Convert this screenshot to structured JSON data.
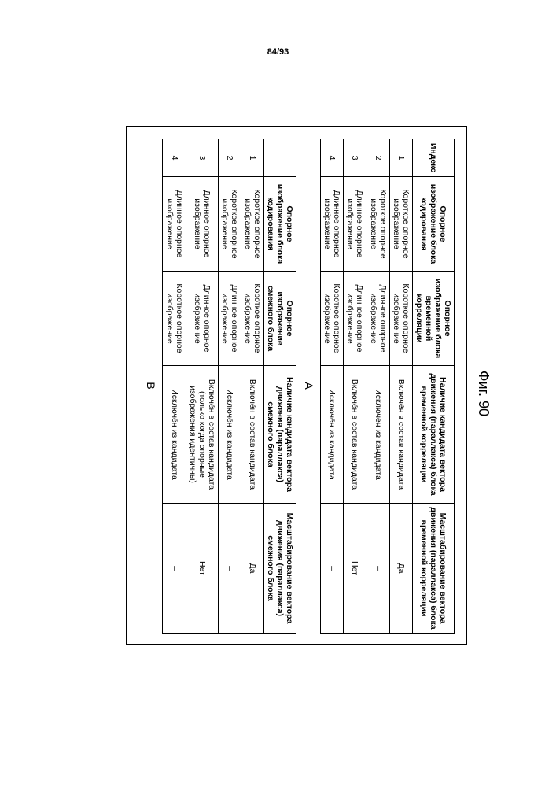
{
  "pageNumber": "84/93",
  "figTitle": "Фиг. 90",
  "labelA": "A",
  "labelB": "B",
  "tableA": {
    "headers": {
      "idx": "Индекс",
      "ref": "Опорное изображение блока кодирования",
      "corr": "Опорное изображение блока временной корреляции",
      "cand": "Наличие кандидата вектора движения (параллакса) блока временной корреляции",
      "scale": "Масштабирование вектора движения (параллакса) блока временной корреляции"
    },
    "rows": [
      {
        "idx": "1",
        "ref": "Короткое опорное изображение",
        "corr": "Короткое опорное изображение",
        "cand": "Включён в состав кандидата",
        "scale": "Да"
      },
      {
        "idx": "2",
        "ref": "Короткое опорное изображение",
        "corr": "Длинное опорное изображение",
        "cand": "Исключён из кандидата",
        "scale": "–"
      },
      {
        "idx": "3",
        "ref": "Длинное опорное изображение",
        "corr": "Длинное опорное изображение",
        "cand": "Включён в состав кандидата",
        "scale": "Нет"
      },
      {
        "idx": "4",
        "ref": "Длинное опорное изображение",
        "corr": "Короткое опорное изображение",
        "cand": "Исключён из кандидата",
        "scale": "–"
      }
    ]
  },
  "tableB": {
    "headers": {
      "idx": "",
      "ref": "Опорное изображение блока кодирования",
      "corr": "Опорное изображение смежного блока",
      "cand": "Наличие кандидата вектора движения (параллакса) смежного блока",
      "scale": "Масштабирование вектора движения (параллакса) смежного блока"
    },
    "rows": [
      {
        "idx": "1",
        "ref": "Короткое опорное изображение",
        "corr": "Короткое опорное изображение",
        "cand": "Включён в состав кандидата",
        "scale": "Да"
      },
      {
        "idx": "2",
        "ref": "Короткое опорное изображение",
        "corr": "Длинное опорное изображение",
        "cand": "Исключён из кандидата",
        "scale": "–"
      },
      {
        "idx": "3",
        "ref": "Длинное опорное изображение",
        "corr": "Длинное опорное изображение",
        "cand": "Включён в состав кандидата (только когда опорные изображения идентичны)",
        "scale": "Нет"
      },
      {
        "idx": "4",
        "ref": "Длинное опорное изображение",
        "corr": "Короткое опорное изображение",
        "cand": "Исключён из кандидата",
        "scale": "–"
      }
    ]
  }
}
